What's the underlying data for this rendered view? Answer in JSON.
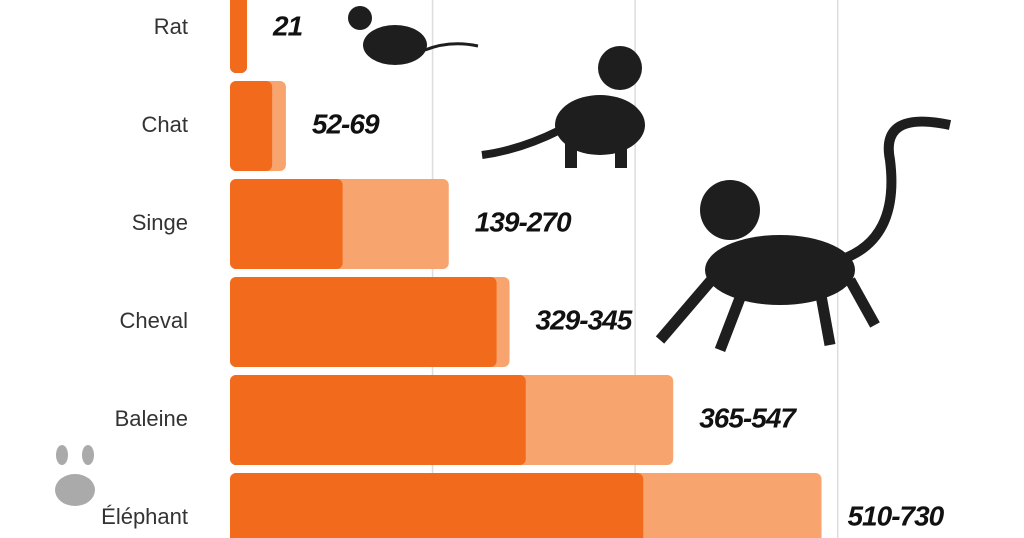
{
  "chart_data": {
    "type": "range-bar",
    "categories": [
      "Rat",
      "Chat",
      "Singe",
      "Cheval",
      "Baleine",
      "Éléphant"
    ],
    "values": [
      [
        21,
        21
      ],
      [
        52,
        69
      ],
      [
        139,
        270
      ],
      [
        329,
        345
      ],
      [
        365,
        547
      ],
      [
        510,
        730
      ]
    ],
    "value_labels": [
      "21",
      "52-69",
      "139-270",
      "329-345",
      "365-547",
      "510-730"
    ],
    "colors": [
      "#f26b1d",
      "#f7a46f"
    ],
    "xlim": [
      0,
      975
    ],
    "xticks": [
      250,
      500,
      750
    ],
    "grid": true
  }
}
